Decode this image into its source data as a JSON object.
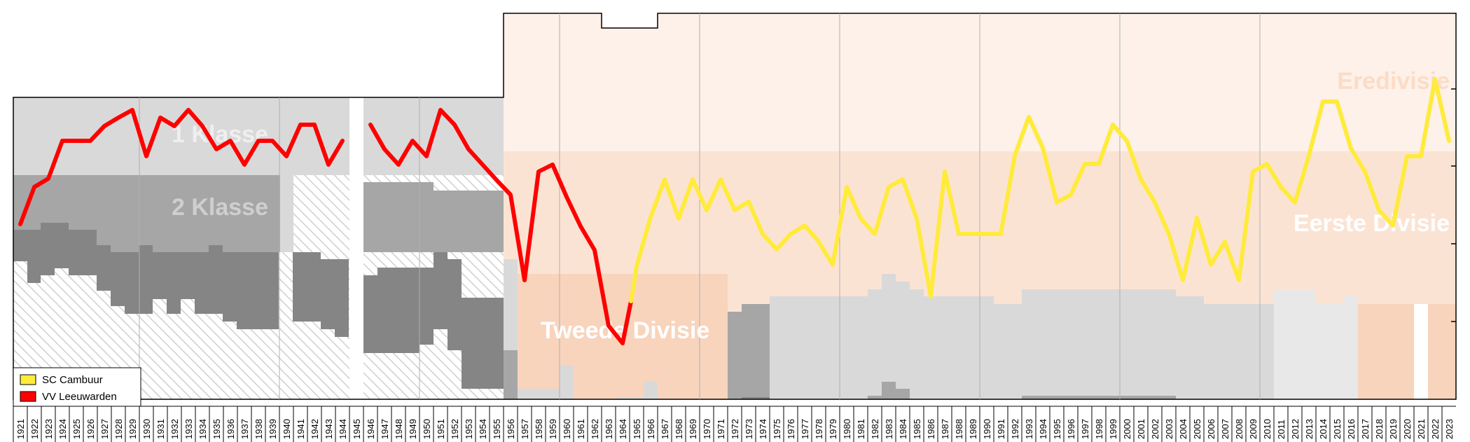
{
  "chart_data": {
    "type": "line",
    "x_range": [
      1921,
      2023
    ],
    "tiers": [
      {
        "key": "eredivisie",
        "label": "Eredivisie",
        "color": "#FDF1E9",
        "label_color": "#FBDCC6"
      },
      {
        "key": "eerste",
        "label": "Eerste Divisie",
        "color": "#FBE3D4",
        "label_color": "#FFFFFF"
      },
      {
        "key": "tweede",
        "label": "Tweede Divisie",
        "color": "#F8D4BC",
        "label_color": "#FFFFFF"
      },
      {
        "key": "klasse1",
        "label": "1 Klasse",
        "color": "#D9D9D9",
        "label_color": "#EFEFEF"
      },
      {
        "key": "klasse2",
        "label": "2 Klasse",
        "color": "#A6A6A6",
        "label_color": "#CFCFCF"
      }
    ],
    "years": [
      "1921",
      "1922",
      "1923",
      "1924",
      "1925",
      "1926",
      "1927",
      "1928",
      "1929",
      "1930",
      "1931",
      "1932",
      "1933",
      "1934",
      "1935",
      "1936",
      "1937",
      "1938",
      "1939",
      "1940",
      "1941",
      "1942",
      "1943",
      "1944",
      "1945",
      "1946",
      "1947",
      "1948",
      "1949",
      "1950",
      "1951",
      "1952",
      "1953",
      "1954",
      "1955",
      "1956",
      "1957",
      "1958",
      "1959",
      "1960",
      "1961",
      "1962",
      "1963",
      "1964",
      "1965",
      "1966",
      "1967",
      "1968",
      "1969",
      "1970",
      "1971",
      "1972",
      "1973",
      "1974",
      "1975",
      "1976",
      "1977",
      "1978",
      "1979",
      "1980",
      "1981",
      "1982",
      "1983",
      "1984",
      "1985",
      "1986",
      "1987",
      "1988",
      "1989",
      "1990",
      "1991",
      "1992",
      "1993",
      "1994",
      "1995",
      "1996",
      "1997",
      "1998",
      "1999",
      "2000",
      "2001",
      "2002",
      "2003",
      "2004",
      "2005",
      "2006",
      "2007",
      "2008",
      "2009",
      "2010",
      "2011",
      "2012",
      "2013",
      "2014",
      "2015",
      "2016",
      "2017",
      "2018",
      "2019",
      "2020",
      "2021",
      "2022",
      "2023"
    ],
    "series": [
      {
        "name": "VV Leeuwarden",
        "color": "#FF0000",
        "points": [
          [
            1921,
            320
          ],
          [
            1922,
            267
          ],
          [
            1923,
            255
          ],
          [
            1924,
            201
          ],
          [
            1925,
            201
          ],
          [
            1926,
            201
          ],
          [
            1927,
            180
          ],
          [
            1928,
            168
          ],
          [
            1929,
            157
          ],
          [
            1930,
            223
          ],
          [
            1931,
            168
          ],
          [
            1932,
            180
          ],
          [
            1933,
            157
          ],
          [
            1934,
            180
          ],
          [
            1935,
            213
          ],
          [
            1936,
            201
          ],
          [
            1937,
            235
          ],
          [
            1938,
            201
          ],
          [
            1939,
            201
          ],
          [
            1940,
            223
          ],
          [
            1941,
            178
          ],
          [
            1942,
            178
          ],
          [
            1943,
            235
          ],
          [
            1944,
            201
          ],
          [
            1946,
            178
          ],
          [
            1947,
            213
          ],
          [
            1948,
            235
          ],
          [
            1949,
            201
          ],
          [
            1950,
            223
          ],
          [
            1951,
            157
          ],
          [
            1952,
            178
          ],
          [
            1953,
            213
          ],
          [
            1954,
            235
          ],
          [
            1955,
            257
          ],
          [
            1956,
            278
          ],
          [
            1957,
            400
          ],
          [
            1958,
            245
          ],
          [
            1959,
            235
          ],
          [
            1960,
            281
          ],
          [
            1961,
            323
          ],
          [
            1962,
            357
          ],
          [
            1963,
            465
          ],
          [
            1964,
            490
          ],
          [
            1964.6,
            430
          ]
        ]
      },
      {
        "name": "SC Cambuur",
        "color": "#FFEB3B",
        "points": [
          [
            1964.6,
            430
          ],
          [
            1965,
            380
          ],
          [
            1966,
            310
          ],
          [
            1967,
            256
          ],
          [
            1968,
            312
          ],
          [
            1969,
            256
          ],
          [
            1970,
            300
          ],
          [
            1971,
            256
          ],
          [
            1972,
            300
          ],
          [
            1973,
            288
          ],
          [
            1974,
            334
          ],
          [
            1975,
            356
          ],
          [
            1976,
            334
          ],
          [
            1977,
            322
          ],
          [
            1978,
            345
          ],
          [
            1979,
            378
          ],
          [
            1980,
            267
          ],
          [
            1981,
            312
          ],
          [
            1982,
            334
          ],
          [
            1983,
            267
          ],
          [
            1984,
            256
          ],
          [
            1985,
            312
          ],
          [
            1986,
            423
          ],
          [
            1987,
            245
          ],
          [
            1988,
            334
          ],
          [
            1989,
            334
          ],
          [
            1990,
            334
          ],
          [
            1991,
            334
          ],
          [
            1992,
            222
          ],
          [
            1993,
            167
          ],
          [
            1994,
            211
          ],
          [
            1995,
            289
          ],
          [
            1996,
            278
          ],
          [
            1997,
            234
          ],
          [
            1998,
            234
          ],
          [
            1999,
            178
          ],
          [
            2000,
            201
          ],
          [
            2001,
            256
          ],
          [
            2002,
            289
          ],
          [
            2003,
            334
          ],
          [
            2004,
            400
          ],
          [
            2005,
            311
          ],
          [
            2006,
            378
          ],
          [
            2007,
            345
          ],
          [
            2008,
            400
          ],
          [
            2009,
            245
          ],
          [
            2010,
            234
          ],
          [
            2011,
            267
          ],
          [
            2012,
            289
          ],
          [
            2013,
            222
          ],
          [
            2014,
            145
          ],
          [
            2015,
            145
          ],
          [
            2016,
            212
          ],
          [
            2017,
            245
          ],
          [
            2018,
            300
          ],
          [
            2019,
            322
          ],
          [
            2020,
            223
          ],
          [
            2021,
            223
          ],
          [
            2022,
            113
          ],
          [
            2023,
            201
          ]
        ]
      }
    ],
    "legend": {
      "position": "bottom-left"
    }
  }
}
